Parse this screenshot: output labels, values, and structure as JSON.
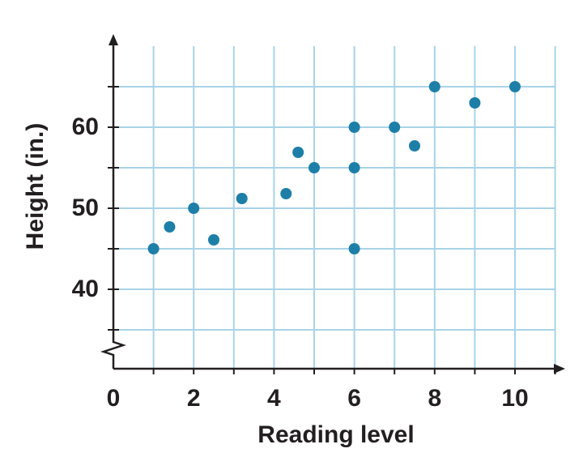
{
  "chart_data": {
    "type": "scatter",
    "x_label": "Reading level",
    "y_label": "Height (in.)",
    "x": [
      1,
      1.4,
      2,
      2.5,
      3.2,
      4.3,
      4.6,
      5,
      6,
      6,
      6,
      7,
      7.5,
      8,
      9,
      10
    ],
    "values": [
      45,
      47.7,
      50,
      46.1,
      51.2,
      51.8,
      56.9,
      55,
      60,
      55,
      45,
      60,
      57.7,
      65,
      63,
      65
    ],
    "color": "#1d7fa8",
    "xlim": [
      0,
      11
    ],
    "ylim": [
      35,
      70
    ],
    "xticks": [
      0,
      2,
      4,
      6,
      8,
      10
    ],
    "yticks": [
      40,
      50,
      60
    ],
    "xgrid": [
      1,
      2,
      3,
      4,
      5,
      6,
      7,
      8,
      9,
      10,
      11
    ],
    "ygrid": [
      35,
      40,
      45,
      50,
      55,
      60,
      65
    ],
    "grid_color": "#a9d3e8"
  }
}
